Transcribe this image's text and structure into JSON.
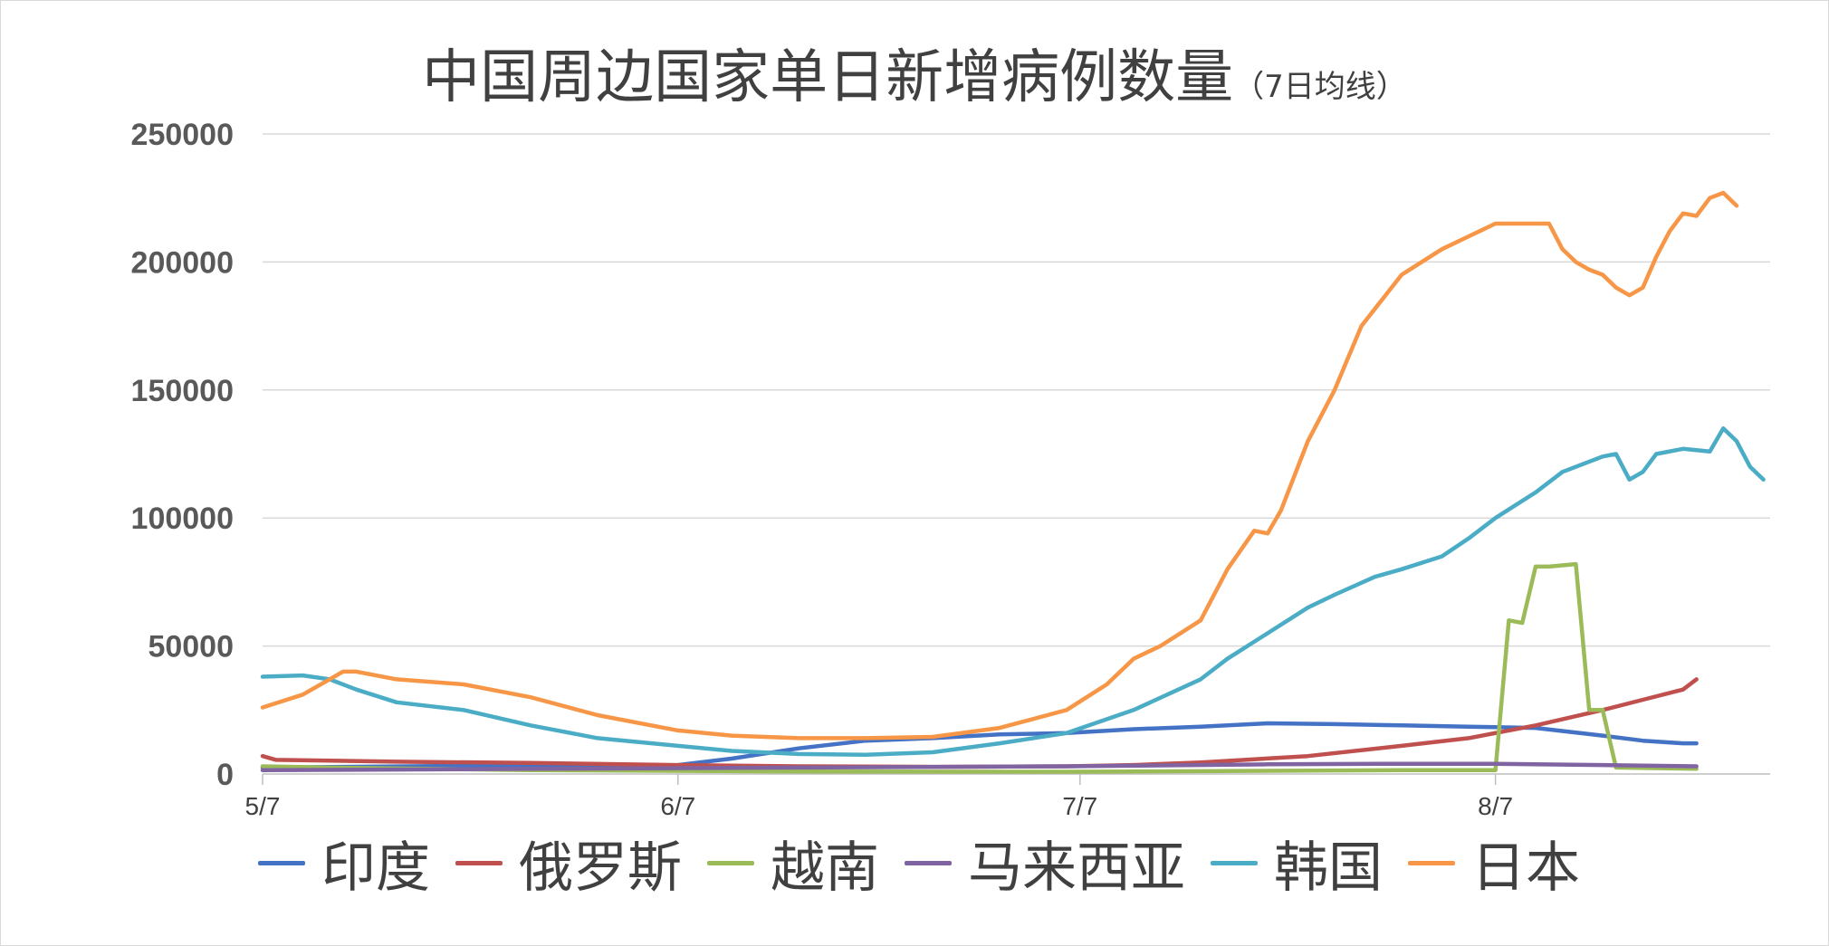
{
  "chart_data": {
    "type": "line",
    "title": "中国周边国家单日新增病例数量",
    "subtitle": "（7日均线）",
    "xlabel": "",
    "ylabel": "",
    "ylim": [
      0,
      250000
    ],
    "yticks": [
      "0",
      "50000",
      "100000",
      "150000",
      "200000",
      "250000"
    ],
    "x_range_days": [
      0,
      107
    ],
    "xticks": [
      {
        "label": "5/7",
        "day": 0
      },
      {
        "label": "6/7",
        "day": 31
      },
      {
        "label": "7/7",
        "day": 61
      },
      {
        "label": "8/7",
        "day": 92
      }
    ],
    "grid": true,
    "legend_position": "bottom",
    "series": [
      {
        "name": "印度",
        "color": "#4472C4",
        "points": [
          [
            0,
            2500
          ],
          [
            15,
            3200
          ],
          [
            25,
            3000
          ],
          [
            31,
            3500
          ],
          [
            35,
            6000
          ],
          [
            40,
            10000
          ],
          [
            45,
            13000
          ],
          [
            50,
            14000
          ],
          [
            55,
            15500
          ],
          [
            60,
            16000
          ],
          [
            65,
            17500
          ],
          [
            70,
            18500
          ],
          [
            75,
            19800
          ],
          [
            80,
            19500
          ],
          [
            85,
            19000
          ],
          [
            90,
            18500
          ],
          [
            95,
            18000
          ],
          [
            100,
            15000
          ],
          [
            103,
            13000
          ],
          [
            106,
            12000
          ],
          [
            107,
            12000
          ]
        ]
      },
      {
        "name": "俄罗斯",
        "color": "#C0504D",
        "points": [
          [
            0,
            7000
          ],
          [
            1,
            5500
          ],
          [
            10,
            4800
          ],
          [
            20,
            4300
          ],
          [
            31,
            3500
          ],
          [
            40,
            3000
          ],
          [
            50,
            2800
          ],
          [
            60,
            3000
          ],
          [
            65,
            3500
          ],
          [
            70,
            4500
          ],
          [
            78,
            7000
          ],
          [
            85,
            11000
          ],
          [
            90,
            14000
          ],
          [
            95,
            19000
          ],
          [
            100,
            25000
          ],
          [
            103,
            29000
          ],
          [
            106,
            33000
          ],
          [
            107,
            37000
          ]
        ]
      },
      {
        "name": "越南",
        "color": "#9BBB59",
        "points": [
          [
            0,
            3000
          ],
          [
            5,
            2500
          ],
          [
            20,
            1500
          ],
          [
            40,
            1000
          ],
          [
            60,
            900
          ],
          [
            85,
            1500
          ],
          [
            92,
            1500
          ],
          [
            93,
            60000
          ],
          [
            94,
            59000
          ],
          [
            95,
            81000
          ],
          [
            96,
            81000
          ],
          [
            97,
            81500
          ],
          [
            98,
            82000
          ],
          [
            99,
            25000
          ],
          [
            100,
            25000
          ],
          [
            101,
            2500
          ],
          [
            107,
            2000
          ]
        ]
      },
      {
        "name": "马来西亚",
        "color": "#8064A2",
        "points": [
          [
            0,
            1500
          ],
          [
            20,
            2000
          ],
          [
            40,
            2500
          ],
          [
            60,
            3000
          ],
          [
            75,
            3800
          ],
          [
            85,
            4000
          ],
          [
            92,
            4000
          ],
          [
            100,
            3500
          ],
          [
            107,
            3000
          ]
        ]
      },
      {
        "name": "韩国",
        "color": "#4BACC6",
        "points": [
          [
            0,
            38000
          ],
          [
            3,
            38500
          ],
          [
            5,
            37000
          ],
          [
            7,
            33000
          ],
          [
            10,
            28000
          ],
          [
            15,
            25000
          ],
          [
            20,
            19000
          ],
          [
            25,
            14000
          ],
          [
            31,
            11000
          ],
          [
            35,
            9000
          ],
          [
            40,
            7800
          ],
          [
            45,
            7500
          ],
          [
            50,
            8500
          ],
          [
            55,
            12000
          ],
          [
            60,
            16000
          ],
          [
            65,
            25000
          ],
          [
            70,
            37000
          ],
          [
            72,
            45000
          ],
          [
            75,
            55000
          ],
          [
            78,
            65000
          ],
          [
            80,
            70000
          ],
          [
            83,
            77000
          ],
          [
            85,
            80000
          ],
          [
            88,
            85000
          ],
          [
            90,
            92000
          ],
          [
            92,
            100000
          ],
          [
            95,
            110000
          ],
          [
            97,
            118000
          ],
          [
            100,
            124000
          ],
          [
            101,
            125000
          ],
          [
            102,
            115000
          ],
          [
            103,
            118000
          ],
          [
            104,
            125000
          ],
          [
            106,
            127000
          ],
          [
            108,
            126000
          ],
          [
            109,
            135000
          ],
          [
            110,
            130000
          ],
          [
            111,
            120000
          ],
          [
            112,
            115000
          ]
        ]
      },
      {
        "name": "日本",
        "color": "#F79646",
        "points": [
          [
            0,
            26000
          ],
          [
            3,
            31000
          ],
          [
            5,
            37000
          ],
          [
            6,
            40000
          ],
          [
            7,
            40000
          ],
          [
            10,
            37000
          ],
          [
            15,
            35000
          ],
          [
            20,
            30000
          ],
          [
            25,
            23000
          ],
          [
            31,
            17000
          ],
          [
            35,
            15000
          ],
          [
            40,
            14000
          ],
          [
            45,
            14000
          ],
          [
            50,
            14500
          ],
          [
            55,
            18000
          ],
          [
            60,
            25000
          ],
          [
            63,
            35000
          ],
          [
            65,
            45000
          ],
          [
            67,
            50000
          ],
          [
            70,
            60000
          ],
          [
            72,
            80000
          ],
          [
            74,
            95000
          ],
          [
            75,
            94000
          ],
          [
            76,
            103000
          ],
          [
            78,
            130000
          ],
          [
            80,
            150000
          ],
          [
            82,
            175000
          ],
          [
            85,
            195000
          ],
          [
            88,
            205000
          ],
          [
            90,
            210000
          ],
          [
            92,
            215000
          ],
          [
            94,
            215000
          ],
          [
            96,
            215000
          ],
          [
            97,
            205000
          ],
          [
            98,
            200000
          ],
          [
            99,
            197000
          ],
          [
            100,
            195000
          ],
          [
            101,
            190000
          ],
          [
            102,
            187000
          ],
          [
            103,
            190000
          ],
          [
            104,
            202000
          ],
          [
            105,
            212000
          ],
          [
            106,
            219000
          ],
          [
            107,
            218000
          ],
          [
            108,
            225000
          ],
          [
            109,
            227000
          ],
          [
            110,
            222000
          ]
        ]
      }
    ]
  }
}
